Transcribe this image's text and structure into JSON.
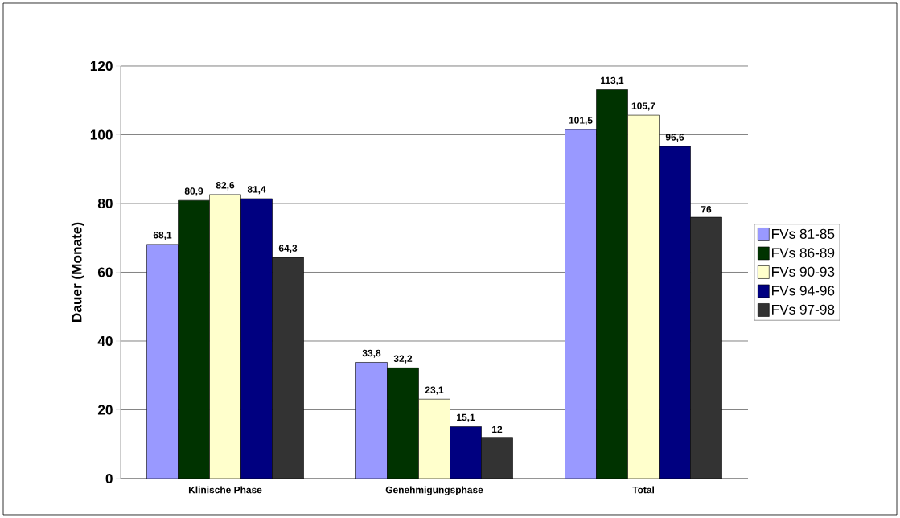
{
  "chart_data": {
    "type": "bar",
    "ylabel": "Dauer (Monate)",
    "categories": [
      "Klinische Phase",
      "Genehmigungsphase",
      "Total"
    ],
    "series": [
      {
        "name": "FVs 81-85",
        "color": "#9999ff",
        "values": [
          68.1,
          33.8,
          101.5
        ],
        "value_labels": [
          "68,1",
          "33,8",
          "101,5"
        ]
      },
      {
        "name": "FVs 86-89",
        "color": "#003300",
        "values": [
          80.9,
          32.2,
          113.1
        ],
        "value_labels": [
          "80,9",
          "32,2",
          "113,1"
        ]
      },
      {
        "name": "FVs 90-93",
        "color": "#ffffcc",
        "values": [
          82.6,
          23.1,
          105.7
        ],
        "value_labels": [
          "82,6",
          "23,1",
          "105,7"
        ]
      },
      {
        "name": "FVs 94-96",
        "color": "#000080",
        "values": [
          81.4,
          15.1,
          96.6
        ],
        "value_labels": [
          "81,4",
          "15,1",
          "96,6"
        ]
      },
      {
        "name": "FVs 97-98",
        "color": "#333333",
        "values": [
          64.3,
          12,
          76
        ],
        "value_labels": [
          "64,3",
          "12",
          "76"
        ]
      }
    ],
    "ylim": [
      0,
      120
    ],
    "yticks": [
      0,
      20,
      40,
      60,
      80,
      100,
      120
    ],
    "grid": "y",
    "legend": "right"
  }
}
